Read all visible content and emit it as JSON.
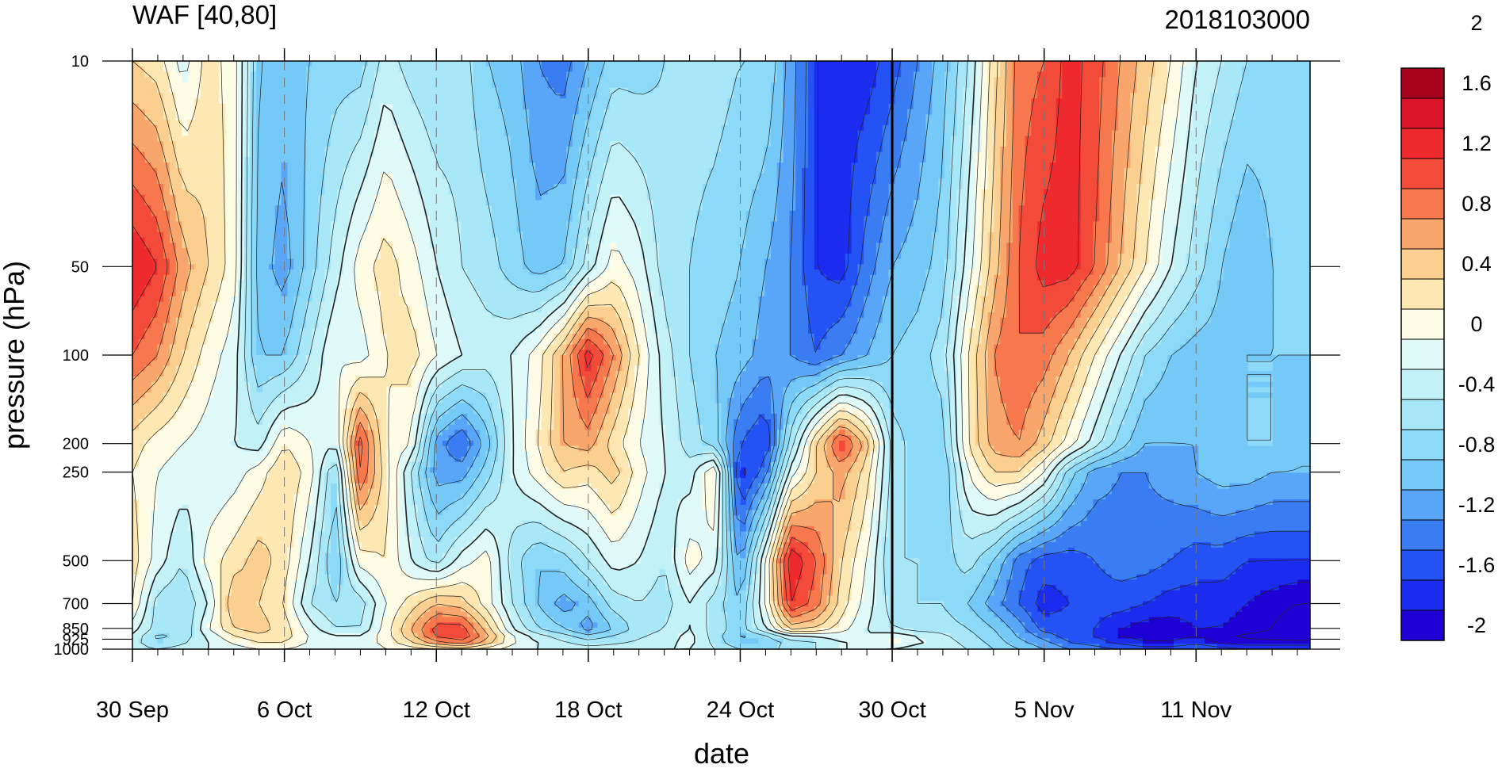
{
  "chart_data": {
    "type": "heatmap",
    "title": "WAF [40,80]",
    "title_right": "2018103000",
    "xlabel": "date",
    "ylabel": "pressure (hPa)",
    "x_dates": [
      "2018-09-30",
      "2018-10-01",
      "2018-10-02",
      "2018-10-03",
      "2018-10-04",
      "2018-10-05",
      "2018-10-06",
      "2018-10-07",
      "2018-10-08",
      "2018-10-09",
      "2018-10-10",
      "2018-10-11",
      "2018-10-12",
      "2018-10-13",
      "2018-10-14",
      "2018-10-15",
      "2018-10-16",
      "2018-10-17",
      "2018-10-18",
      "2018-10-19",
      "2018-10-20",
      "2018-10-21",
      "2018-10-22",
      "2018-10-23",
      "2018-10-24",
      "2018-10-25",
      "2018-10-26",
      "2018-10-27",
      "2018-10-28",
      "2018-10-29",
      "2018-10-30",
      "2018-10-31",
      "2018-11-01",
      "2018-11-02",
      "2018-11-03",
      "2018-11-04",
      "2018-11-05",
      "2018-11-06",
      "2018-11-07",
      "2018-11-08",
      "2018-11-09",
      "2018-11-10",
      "2018-11-11",
      "2018-11-12",
      "2018-11-13",
      "2018-11-14",
      "2018-11-15"
    ],
    "x_tick_labels": [
      "30 Sep",
      "6 Oct",
      "12 Oct",
      "18 Oct",
      "24 Oct",
      "30 Oct",
      "5 Nov",
      "11 Nov"
    ],
    "forecast_start": "30 Oct",
    "levels_hpa": [
      10,
      50,
      100,
      200,
      250,
      500,
      700,
      850,
      925,
      1000
    ],
    "y_tick_labels": [
      "10",
      "50",
      "100",
      "200",
      "250",
      "500",
      "700",
      "850",
      "925",
      "1000"
    ],
    "y_scale": "log",
    "ylim": [
      1000,
      10
    ],
    "values": [
      [
        0.6,
        0.5,
        0.1,
        0.5,
        0.3,
        -0.6,
        -0.7,
        -0.6,
        -0.5,
        -0.5,
        -0.1,
        -0.3,
        -0.4,
        -0.3,
        -0.6,
        -0.7,
        -1.0,
        -1.1,
        -0.8,
        -0.5,
        -0.5,
        -0.4,
        -0.3,
        -0.3,
        -0.4,
        -0.4,
        -0.9,
        -1.4,
        -1.5,
        -1.5,
        -1.3,
        -1.0,
        -0.7,
        -0.2,
        0.5,
        1.1,
        1.2,
        1.5,
        1.3,
        1.0,
        0.7,
        0.4,
        0.0,
        -0.2,
        -0.4,
        -0.5,
        -0.5
      ],
      [
        1.6,
        1.4,
        0.9,
        0.6,
        0.3,
        -0.7,
        -0.9,
        -0.5,
        -0.1,
        0.3,
        0.5,
        0.3,
        0.0,
        -0.2,
        -0.3,
        -0.5,
        -0.7,
        -0.6,
        -0.1,
        0.3,
        0.1,
        -0.3,
        -0.4,
        -0.5,
        -0.6,
        -0.8,
        -1.0,
        -1.4,
        -1.5,
        -1.1,
        -0.8,
        -0.7,
        -0.5,
        0.1,
        0.7,
        1.2,
        1.5,
        1.5,
        1.2,
        0.8,
        0.4,
        0.0,
        -0.3,
        -0.6,
        -0.8,
        -0.6,
        -0.5
      ],
      [
        1.2,
        1.0,
        0.6,
        0.3,
        0.1,
        -0.6,
        -0.6,
        -0.2,
        0.2,
        0.1,
        0.4,
        0.5,
        0.2,
        0.0,
        -0.1,
        0.0,
        0.3,
        0.8,
        1.5,
        1.0,
        0.4,
        -0.1,
        -0.4,
        -0.6,
        -0.7,
        -0.9,
        -1.0,
        -1.2,
        -1.0,
        -0.8,
        -0.6,
        -0.5,
        -0.3,
        0.4,
        1.0,
        1.2,
        1.1,
        0.8,
        0.4,
        0.0,
        -0.4,
        -0.6,
        -0.7,
        -0.7,
        -0.6,
        -0.6,
        -0.6
      ],
      [
        0.5,
        0.3,
        0.2,
        0.1,
        0.0,
        -0.1,
        0.4,
        0.2,
        0.0,
        1.3,
        0.4,
        0.2,
        -0.9,
        -1.2,
        -0.7,
        0.0,
        0.4,
        0.8,
        0.9,
        0.5,
        0.2,
        0.0,
        -0.3,
        -0.5,
        -1.2,
        -1.4,
        -0.3,
        0.6,
        1.3,
        0.7,
        -0.3,
        -0.5,
        -0.5,
        0.4,
        0.9,
        1.0,
        0.7,
        0.3,
        -0.1,
        -0.5,
        -0.8,
        -0.8,
        -0.8,
        -0.7,
        -0.6,
        -0.6,
        -0.8
      ],
      [
        0.4,
        0.2,
        0.1,
        0.0,
        0.1,
        0.3,
        0.6,
        0.3,
        -0.4,
        1.2,
        0.5,
        -0.2,
        -0.9,
        -0.9,
        -0.5,
        0.0,
        0.3,
        0.6,
        0.5,
        0.7,
        0.3,
        0.0,
        -0.1,
        0.4,
        -1.5,
        -1.1,
        0.1,
        0.6,
        0.9,
        0.5,
        -0.3,
        -0.5,
        -0.6,
        0.2,
        0.6,
        0.6,
        0.2,
        -0.5,
        -0.9,
        -1.0,
        -1.0,
        -0.9,
        -0.8,
        -0.7,
        -0.7,
        -0.8,
        -0.8
      ],
      [
        0.5,
        0.1,
        -0.2,
        0.3,
        0.5,
        0.7,
        0.5,
        0.0,
        -0.6,
        0.3,
        0.4,
        0.0,
        -0.3,
        0.1,
        0.3,
        -0.3,
        -0.6,
        -0.5,
        -0.2,
        0.1,
        0.0,
        -0.2,
        0.3,
        0.1,
        -0.9,
        0.2,
        1.6,
        1.2,
        0.6,
        0.2,
        -0.4,
        -0.4,
        -0.5,
        -0.3,
        -0.6,
        -1.1,
        -1.3,
        -1.3,
        -1.2,
        -1.1,
        -1.1,
        -1.2,
        -1.3,
        -1.3,
        -1.4,
        -1.4,
        -1.4
      ],
      [
        0.4,
        -0.3,
        -0.4,
        0.0,
        0.8,
        0.6,
        0.4,
        -0.2,
        -0.4,
        -0.3,
        0.2,
        0.5,
        0.8,
        0.7,
        0.3,
        -0.2,
        -0.6,
        -0.9,
        -0.7,
        -0.3,
        -0.2,
        -0.3,
        0.0,
        -0.3,
        -0.6,
        0.2,
        1.4,
        1.1,
        0.5,
        0.1,
        -0.3,
        -0.4,
        -0.4,
        -0.6,
        -0.9,
        -1.2,
        -1.5,
        -1.4,
        -1.3,
        -1.3,
        -1.4,
        -1.5,
        -1.5,
        -1.5,
        -1.6,
        -1.7,
        -1.8
      ],
      [
        0.1,
        -0.3,
        -0.4,
        0.2,
        0.6,
        0.7,
        0.5,
        0.1,
        -0.2,
        -0.2,
        0.3,
        0.8,
        1.3,
        1.3,
        0.7,
        0.0,
        -0.4,
        -0.6,
        -0.9,
        -0.6,
        -0.3,
        -0.2,
        0.0,
        -0.3,
        -0.5,
        0.0,
        0.7,
        0.6,
        0.3,
        0.0,
        -0.2,
        -0.3,
        -0.3,
        -0.4,
        -0.6,
        -0.9,
        -1.3,
        -1.3,
        -1.4,
        -1.6,
        -1.7,
        -1.7,
        -1.6,
        -1.6,
        -1.7,
        -1.8,
        -2.0
      ],
      [
        -0.1,
        -0.5,
        -0.3,
        0.0,
        0.3,
        0.5,
        0.5,
        0.2,
        0.1,
        0.1,
        0.3,
        0.7,
        1.2,
        1.4,
        0.9,
        0.3,
        0.0,
        -0.2,
        -0.4,
        -0.3,
        -0.2,
        -0.1,
        0.1,
        -0.3,
        -0.7,
        -0.6,
        -0.3,
        -0.2,
        0.0,
        0.0,
        0.3,
        0.1,
        -0.1,
        -0.3,
        -0.5,
        -0.8,
        -1.0,
        -1.3,
        -1.4,
        -1.6,
        -1.7,
        -1.7,
        -1.6,
        -1.8,
        -1.9,
        -1.9,
        -1.9
      ],
      [
        -0.1,
        -0.2,
        -0.1,
        0.0,
        0.1,
        0.2,
        0.2,
        0.1,
        0.0,
        0.0,
        0.2,
        0.3,
        0.4,
        0.5,
        0.3,
        0.1,
        0.0,
        -0.1,
        -0.1,
        -0.1,
        -0.1,
        0.0,
        0.0,
        -0.2,
        -0.4,
        -0.5,
        -0.3,
        -0.2,
        0.0,
        0.0,
        0.0,
        -0.1,
        -0.1,
        -0.2,
        -0.4,
        -0.6,
        -0.8,
        -1.0,
        -1.1,
        -1.2,
        -1.3,
        -1.3,
        -1.2,
        -1.3,
        -1.4,
        -1.4,
        -1.4
      ]
    ],
    "colorbar": {
      "colors": [
        "#1e00d4",
        "#1b2cee",
        "#2452f5",
        "#3a7df3",
        "#59a6f8",
        "#74c9f7",
        "#8cdaf8",
        "#a7e7f8",
        "#c3f1f8",
        "#e0fafa",
        "#fffce6",
        "#fde8b3",
        "#fbcf8f",
        "#f9a66c",
        "#f6784c",
        "#f34b3a",
        "#ef2a2f",
        "#d8132a",
        "#a7021d"
      ],
      "levels": [
        -2.2,
        -2.0,
        -1.8,
        -1.6,
        -1.4,
        -1.2,
        -1.0,
        -0.8,
        -0.6,
        -0.4,
        -0.2,
        0.0,
        0.2,
        0.4,
        0.6,
        0.8,
        1.0,
        1.2,
        1.4,
        1.6,
        1.8,
        2.0,
        2.2
      ],
      "tick_labels": [
        "-2",
        "-1.6",
        "-1.2",
        "-0.8",
        "-0.4",
        "0",
        "0.4",
        "0.8",
        "1.2",
        "1.6",
        "2"
      ],
      "tick_values": [
        -2.0,
        -1.6,
        -1.2,
        -0.8,
        -0.4,
        0.0,
        0.4,
        0.8,
        1.2,
        1.6,
        2.0
      ]
    }
  }
}
